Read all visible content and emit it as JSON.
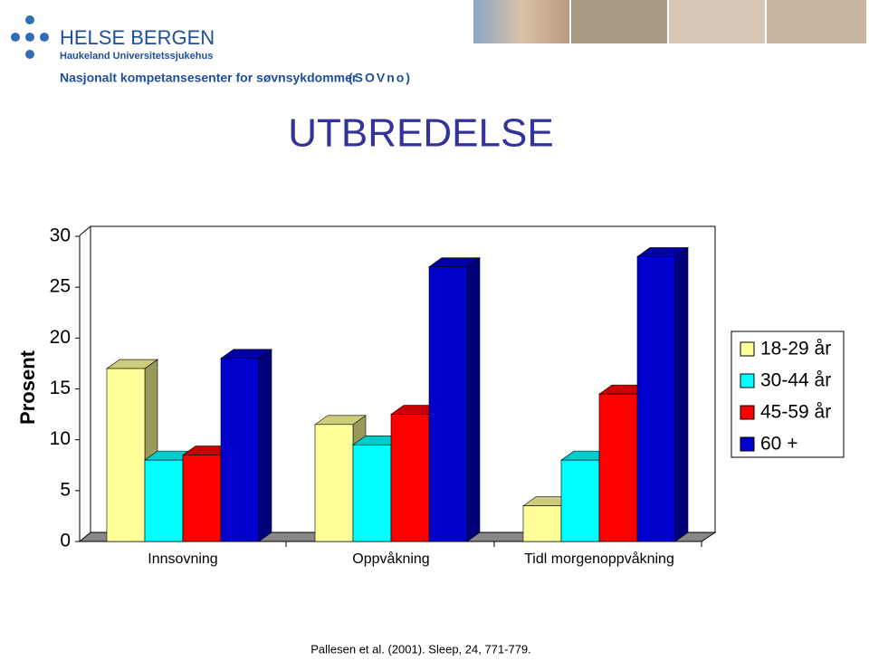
{
  "header": {
    "brand": "HELSE BERGEN",
    "subbrand": "Haukeland Universitetssjukehus",
    "center": "Nasjonalt kompetansesenter for søvnsykdommer",
    "center_abbr": "(SOVno)"
  },
  "chart_data": {
    "type": "bar3d",
    "title": "UTBREDELSE",
    "y_label": "Prosent",
    "categories": [
      "Innsovning",
      "Oppvåkning",
      "Tidl morgenoppvåkning"
    ],
    "series": [
      {
        "name": "18-29 år",
        "color": "#ffff99",
        "values": [
          17,
          11.5,
          3.5
        ]
      },
      {
        "name": "30-44 år",
        "color": "#00ffff",
        "values": [
          8,
          9.5,
          8
        ]
      },
      {
        "name": "45-59 år",
        "color": "#ff0000",
        "values": [
          8.5,
          12.5,
          14.5
        ]
      },
      {
        "name": "60 +",
        "color": "#0000cc",
        "values": [
          18,
          27,
          28
        ]
      }
    ],
    "ylim": [
      0,
      30
    ],
    "yticks": [
      0,
      5,
      10,
      15,
      20,
      25,
      30
    ],
    "legend": "right"
  },
  "citation": "Pallesen et al. (2001). Sleep, 24, 771-779."
}
